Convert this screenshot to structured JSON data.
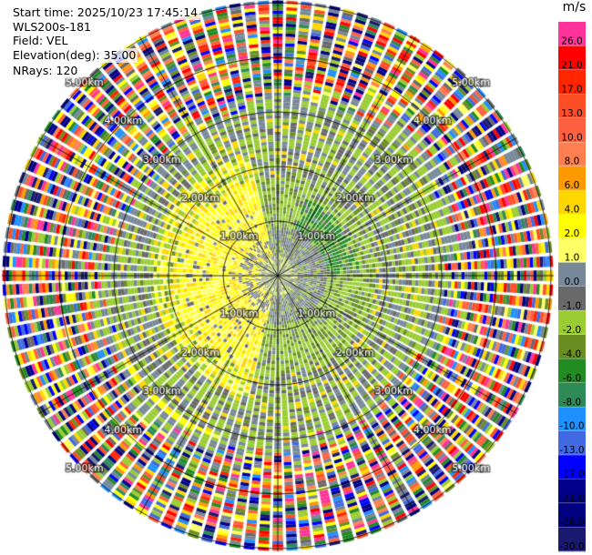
{
  "info": {
    "start_time": "Start time: 2025/10/23 17:45:14",
    "instrument": "WLS200s-181",
    "field": "Field: VEL",
    "elevation": "Elevation(deg): 35.00",
    "nrays": "NRays: 120"
  },
  "colorbar": {
    "unit": "m/s",
    "bins": [
      {
        "label": "26.0",
        "color": "#ff3399"
      },
      {
        "label": "21.0",
        "color": "#ff0000"
      },
      {
        "label": "17.0",
        "color": "#ff2600"
      },
      {
        "label": "13.0",
        "color": "#ff4d26"
      },
      {
        "label": "10.0",
        "color": "#ff6040"
      },
      {
        "label": "8.0",
        "color": "#ff7f50"
      },
      {
        "label": "6.0",
        "color": "#ff9900"
      },
      {
        "label": "4.0",
        "color": "#ffd700"
      },
      {
        "label": "2.0",
        "color": "#ffff00"
      },
      {
        "label": "1.0",
        "color": "#ffff66"
      },
      {
        "label": "0.0",
        "color": "#778899"
      },
      {
        "label": "-1.0",
        "color": "#696969"
      },
      {
        "label": "-2.0",
        "color": "#9acd32"
      },
      {
        "label": "-4.0",
        "color": "#6b8e23"
      },
      {
        "label": "-6.0",
        "color": "#228b22"
      },
      {
        "label": "-8.0",
        "color": "#2e8b57"
      },
      {
        "label": "-10.0",
        "color": "#1e90ff"
      },
      {
        "label": "-13.0",
        "color": "#4169e1"
      },
      {
        "label": "-17.0",
        "color": "#0000ff"
      },
      {
        "label": "-21.0",
        "color": "#00008b"
      },
      {
        "label": "-26.0",
        "color": "#000080"
      },
      {
        "label": "-30.0",
        "color": "#191970"
      }
    ]
  },
  "chart_data": {
    "type": "heatmap",
    "projection": "polar-ppi",
    "field": "VEL",
    "units": "m/s",
    "nrays": 120,
    "range_rings_km": [
      1,
      2,
      3,
      4,
      5
    ],
    "ring_labels": [
      "1.00km",
      "2.00km",
      "3.00km",
      "4.00km",
      "5.00km"
    ],
    "max_range_km": 5.05,
    "azimuth_lines_deg": [
      0,
      30,
      60,
      90,
      120,
      150,
      180,
      210,
      240,
      270,
      300,
      330
    ],
    "regions": [
      {
        "from_km": 0.0,
        "to_km": 0.35,
        "description": "near-range clutter",
        "palette": "mixed"
      },
      {
        "from_km": 0.35,
        "to_km": 2.2,
        "azimuth_deg": [
          200,
          345
        ],
        "value_ms": [
          1.0,
          2.0
        ],
        "palette": "yellow (toward)"
      },
      {
        "from_km": 0.35,
        "to_km": 2.2,
        "azimuth_deg": [
          345,
          160
        ],
        "value_ms": [
          -4.0,
          -1.0
        ],
        "palette": "green (away)"
      },
      {
        "from_km": 1.6,
        "to_km": 3.1,
        "value_ms": [
          -2.0,
          0.0
        ],
        "palette": "green/gray transition"
      },
      {
        "from_km": 3.1,
        "to_km": 5.05,
        "description": "noise / unreliable velocities",
        "palette": "full colormap"
      }
    ]
  }
}
